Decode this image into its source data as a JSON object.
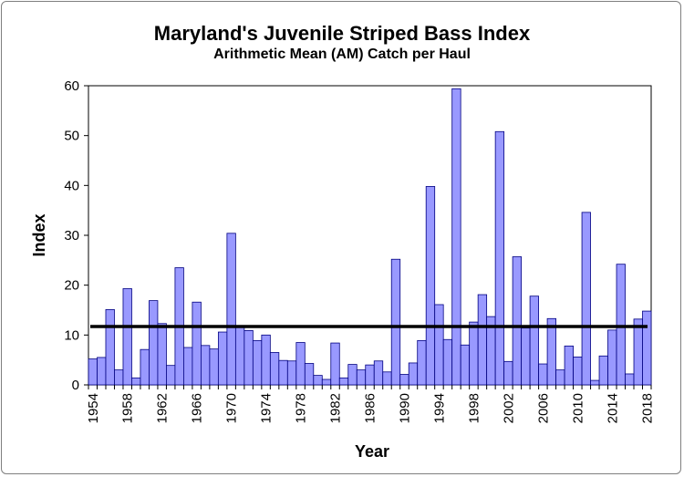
{
  "chart_data": {
    "type": "bar",
    "title": "Maryland's Juvenile Striped Bass Index",
    "subtitle": "Arithmetic Mean (AM) Catch per Haul",
    "xlabel": "Year",
    "ylabel": "Index",
    "ylim": [
      0,
      60
    ],
    "yticks": [
      0,
      10,
      20,
      30,
      40,
      50,
      60
    ],
    "xtick_labels": [
      "1954",
      "1958",
      "1962",
      "1966",
      "1970",
      "1974",
      "1978",
      "1982",
      "1986",
      "1990",
      "1994",
      "1998",
      "2002",
      "2006",
      "2010",
      "2014",
      "2018"
    ],
    "categories": [
      1954,
      1955,
      1956,
      1957,
      1958,
      1959,
      1960,
      1961,
      1962,
      1963,
      1964,
      1965,
      1966,
      1967,
      1968,
      1969,
      1970,
      1971,
      1972,
      1973,
      1974,
      1975,
      1976,
      1977,
      1978,
      1979,
      1980,
      1981,
      1982,
      1983,
      1984,
      1985,
      1986,
      1987,
      1988,
      1989,
      1990,
      1991,
      1992,
      1993,
      1994,
      1995,
      1996,
      1997,
      1998,
      1999,
      2000,
      2001,
      2002,
      2003,
      2004,
      2005,
      2006,
      2007,
      2008,
      2009,
      2010,
      2011,
      2012,
      2013,
      2014,
      2015,
      2016,
      2017,
      2018
    ],
    "values": [
      5.2,
      5.5,
      15.1,
      3.0,
      19.3,
      1.4,
      7.1,
      16.9,
      12.3,
      3.9,
      23.5,
      7.5,
      16.6,
      7.9,
      7.2,
      10.6,
      30.4,
      11.6,
      10.9,
      8.9,
      10.0,
      6.5,
      4.9,
      4.8,
      8.5,
      4.3,
      1.9,
      1.1,
      8.4,
      1.4,
      4.1,
      3.0,
      4.0,
      4.8,
      2.6,
      25.2,
      2.1,
      4.4,
      8.9,
      39.8,
      16.1,
      9.1,
      59.4,
      8.0,
      12.6,
      18.1,
      13.7,
      50.8,
      4.7,
      25.7,
      11.4,
      17.8,
      4.2,
      13.3,
      3.0,
      7.8,
      5.6,
      34.6,
      0.9,
      5.8,
      11.0,
      24.2,
      2.2,
      13.2,
      14.8
    ],
    "reference_line": 11.7,
    "grid": false,
    "colors": {
      "bar_fill": "#9999ff",
      "bar_stroke": "#000080",
      "reference_line": "#000000"
    }
  }
}
